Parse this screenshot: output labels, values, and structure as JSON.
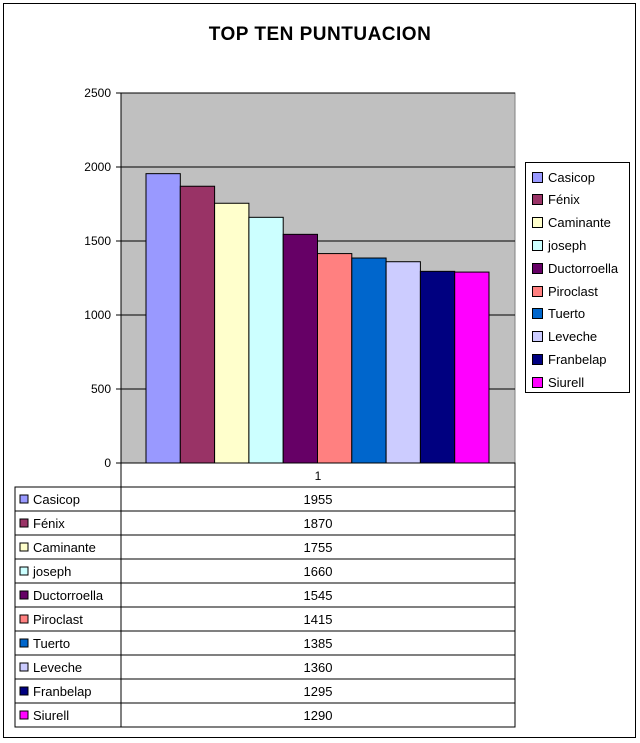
{
  "chart_data": {
    "type": "bar",
    "title": "TOP TEN PUNTUACION",
    "categories": [
      "1"
    ],
    "ylim": [
      0,
      2500
    ],
    "yticks": [
      0,
      500,
      1000,
      1500,
      2000,
      2500
    ],
    "grid": true,
    "legend_position": "right",
    "series": [
      {
        "name": "Casicop",
        "values": [
          1955
        ],
        "color": "#9999ff"
      },
      {
        "name": "Fénix",
        "values": [
          1870
        ],
        "color": "#993366"
      },
      {
        "name": "Caminante",
        "values": [
          1755
        ],
        "color": "#ffffcc"
      },
      {
        "name": "joseph",
        "values": [
          1660
        ],
        "color": "#ccffff"
      },
      {
        "name": "Ductorroella",
        "values": [
          1545
        ],
        "color": "#660066"
      },
      {
        "name": "Piroclast",
        "values": [
          1415
        ],
        "color": "#ff8080"
      },
      {
        "name": "Tuerto",
        "values": [
          1385
        ],
        "color": "#0066cc"
      },
      {
        "name": "Leveche",
        "values": [
          1360
        ],
        "color": "#ccccff"
      },
      {
        "name": "Franbelap",
        "values": [
          1295
        ],
        "color": "#000080"
      },
      {
        "name": "Siurell",
        "values": [
          1290
        ],
        "color": "#ff00ff"
      }
    ],
    "table_values": [
      "1955",
      "1870",
      "1755",
      "1660",
      "1545",
      "1415",
      "1385",
      "1360",
      "1295",
      "1290"
    ]
  },
  "colors": {
    "plot_background": "#c0c0c0",
    "gridline": "#000000"
  }
}
